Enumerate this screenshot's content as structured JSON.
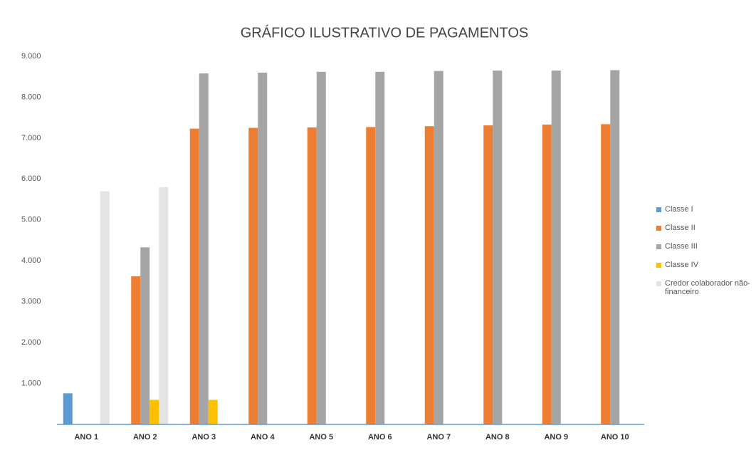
{
  "chart_data": {
    "type": "bar",
    "title": "GRÁFICO ILUSTRATIVO DE PAGAMENTOS",
    "categories": [
      "ANO 1",
      "ANO 2",
      "ANO 3",
      "ANO 4",
      "ANO 5",
      "ANO 6",
      "ANO 7",
      "ANO 8",
      "ANO 9",
      "ANO 10"
    ],
    "series": [
      {
        "name": "Classe I",
        "color": "#5b9bd5",
        "values": [
          760,
          0,
          0,
          0,
          0,
          0,
          0,
          0,
          0,
          0
        ]
      },
      {
        "name": "Classe II",
        "color": "#ed7d31",
        "values": [
          0,
          3620,
          7230,
          7250,
          7260,
          7270,
          7290,
          7310,
          7330,
          7340
        ]
      },
      {
        "name": "Classe III",
        "color": "#a5a5a5",
        "values": [
          0,
          4330,
          8580,
          8600,
          8620,
          8620,
          8640,
          8650,
          8650,
          8660
        ]
      },
      {
        "name": "Classe IV",
        "color": "#ffc000",
        "values": [
          0,
          600,
          600,
          0,
          0,
          0,
          0,
          0,
          0,
          0
        ]
      },
      {
        "name": "Credor colaborador não-financeiro",
        "color": "#e4e4e4",
        "values": [
          5700,
          5800,
          0,
          0,
          0,
          0,
          0,
          0,
          0,
          0
        ]
      }
    ],
    "ylim": [
      0,
      9000
    ],
    "yticks": [
      {
        "value": 1000,
        "label": "1.000"
      },
      {
        "value": 2000,
        "label": "2.000"
      },
      {
        "value": 3000,
        "label": "3.000"
      },
      {
        "value": 4000,
        "label": "4.000"
      },
      {
        "value": 5000,
        "label": "5.000"
      },
      {
        "value": 6000,
        "label": "6.000"
      },
      {
        "value": 7000,
        "label": "7.000"
      },
      {
        "value": 8000,
        "label": "8.000"
      },
      {
        "value": 9000,
        "label": "9.000"
      }
    ],
    "grid": false,
    "legend": "right"
  }
}
